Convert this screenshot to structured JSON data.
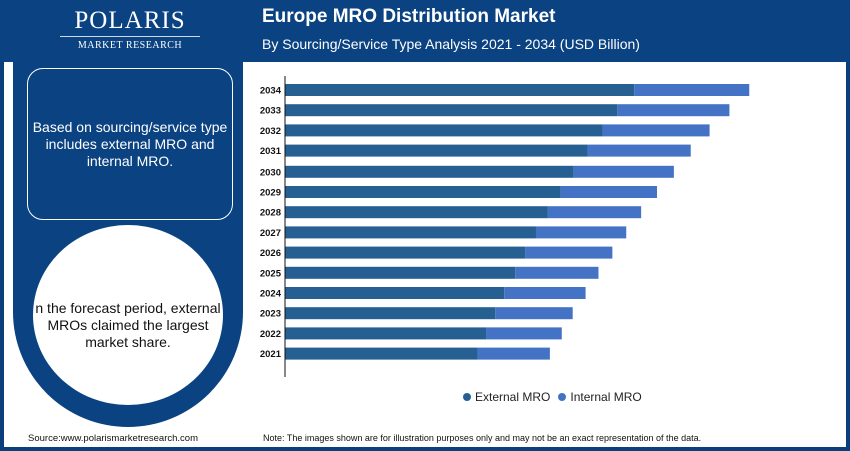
{
  "brand": {
    "name": "POLARIS",
    "tagline": "MARKET RESEARCH"
  },
  "header": {
    "title": "Europe MRO Distribution Market",
    "subtitle": "By Sourcing/Service Type Analysis 2021 - 2034 (USD Billion)"
  },
  "sidebar": {
    "box_text": "Based on sourcing/service type includes external MRO and internal MRO.",
    "circle_text": "n the forecast period, external MROs claimed the largest market share."
  },
  "footer": {
    "source": "Source:www.polarismarketresearch.com",
    "note": "Note: The images shown are for illustration purposes only and may not be an exact representation of the data."
  },
  "chart_data": {
    "type": "bar",
    "orientation": "horizontal",
    "stacked": true,
    "categories": [
      "2034",
      "2033",
      "2032",
      "2031",
      "2030",
      "2029",
      "2028",
      "2027",
      "2026",
      "2025",
      "2024",
      "2023",
      "2022",
      "2021"
    ],
    "series": [
      {
        "name": "External MRO",
        "color": "#265f91",
        "values": [
          35.2,
          33.5,
          32.0,
          30.5,
          29.1,
          27.8,
          26.5,
          25.3,
          24.2,
          23.2,
          22.1,
          21.2,
          20.3,
          19.4
        ]
      },
      {
        "name": "Internal MRO",
        "color": "#4472c4",
        "values": [
          11.6,
          11.3,
          10.8,
          10.4,
          10.1,
          9.7,
          9.4,
          9.1,
          8.8,
          8.4,
          8.2,
          7.8,
          7.6,
          7.3
        ]
      }
    ],
    "xlim": [
      0,
      52
    ],
    "grid": false,
    "legend": "bottom"
  }
}
